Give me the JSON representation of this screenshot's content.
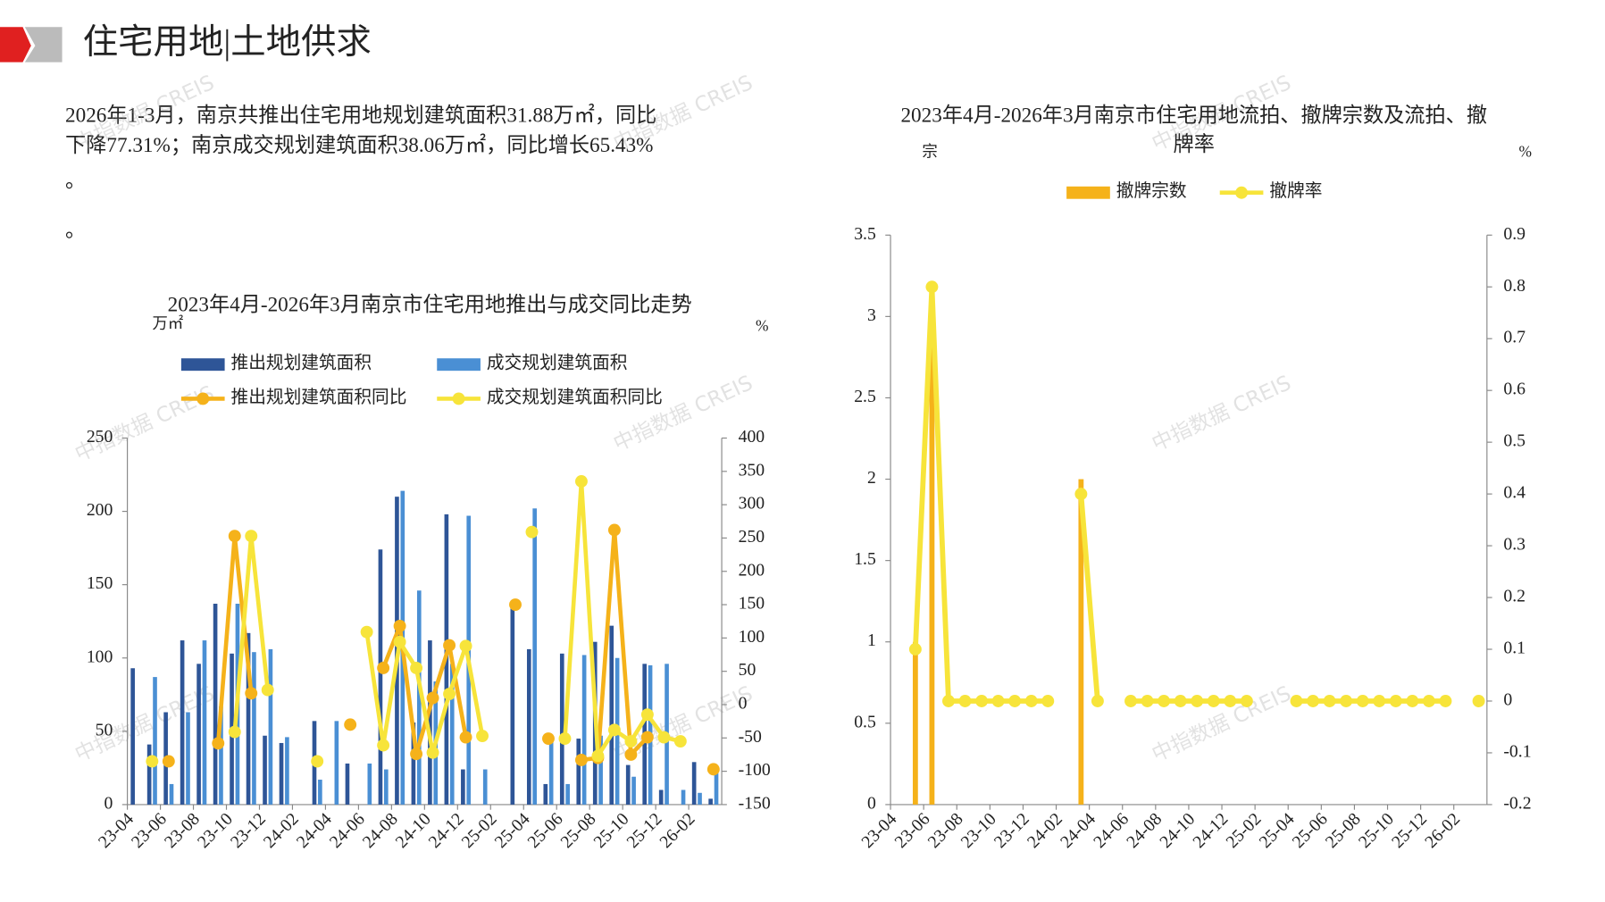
{
  "header": {
    "title": "住宅用地|土地供求"
  },
  "paragraph": [
    "2026年1-3月，南京共推出住宅用地规划建筑面积31.88万㎡，同比",
    "下降77.31%；南京成交规划建筑面积38.06万㎡，同比增长65.43%",
    "。",
    "。"
  ],
  "watermark": "中指数据 CREIS",
  "chart_data": [
    {
      "type": "combo",
      "title": "2023年4月-2026年3月南京市住宅用地推出与成交同比走势",
      "y_unit": "万㎡",
      "y2_unit": "%",
      "categories": [
        "23-04",
        null,
        "23-06",
        null,
        "23-08",
        null,
        "23-10",
        null,
        "23-12",
        null,
        "24-02",
        null,
        "24-04",
        null,
        "24-06",
        null,
        "24-08",
        null,
        "24-10",
        null,
        "24-12",
        null,
        "25-02",
        null,
        "25-04",
        null,
        "25-06",
        null,
        "25-08",
        null,
        "25-10",
        null,
        "25-12",
        null,
        "26-02",
        null
      ],
      "ylim": [
        0,
        250
      ],
      "yticks": [
        0,
        50,
        100,
        150,
        200,
        250
      ],
      "y2lim": [
        -150,
        400
      ],
      "y2ticks": [
        -150,
        -100,
        -50,
        0,
        50,
        100,
        150,
        200,
        250,
        300,
        350,
        400
      ],
      "series": [
        {
          "name": "推出规划建筑面积",
          "kind": "bar",
          "color": "#2e5597",
          "values": [
            93,
            41,
            63,
            112,
            96,
            137,
            103,
            117,
            47,
            42,
            0,
            57,
            0,
            28,
            0,
            174,
            210,
            56,
            112,
            198,
            24,
            0,
            0,
            137,
            106,
            14,
            103,
            45,
            111,
            122,
            27,
            96,
            10,
            0,
            29,
            4
          ]
        },
        {
          "name": "成交规划建筑面积",
          "kind": "bar",
          "color": "#4a8fd4",
          "values": [
            0,
            87,
            14,
            63,
            112,
            67,
            137,
            104,
            106,
            46,
            0,
            17,
            57,
            0,
            28,
            24,
            214,
            146,
            84,
            96,
            197,
            24,
            0,
            0,
            202,
            45,
            14,
            102,
            47,
            100,
            19,
            95,
            96,
            10,
            8,
            26
          ]
        },
        {
          "name": "推出规划建筑面积同比",
          "kind": "line",
          "axis": "y2",
          "color": "#f5b21a",
          "values": [
            null,
            null,
            -85,
            null,
            null,
            -58,
            253,
            17,
            null,
            null,
            null,
            null,
            null,
            -30,
            null,
            55,
            118,
            -74,
            10,
            89,
            -49,
            null,
            null,
            150,
            null,
            -51,
            null,
            -83,
            -80,
            262,
            -75,
            -49,
            null,
            null,
            null,
            -97
          ]
        },
        {
          "name": "成交规划建筑面积同比",
          "kind": "line",
          "axis": "y2",
          "color": "#f7e43a",
          "values": [
            null,
            -85,
            null,
            null,
            null,
            null,
            -41,
            253,
            22,
            null,
            null,
            -85,
            null,
            null,
            109,
            -61,
            94,
            55,
            -72,
            16,
            88,
            -47,
            null,
            null,
            259,
            null,
            -51,
            335,
            -77,
            -38,
            -55,
            -15,
            -49,
            -55,
            null,
            null
          ]
        }
      ]
    },
    {
      "type": "combo",
      "title": [
        "2023年4月-2026年3月南京市住宅用地流拍、撤牌宗数及流拍、撤",
        "牌率"
      ],
      "y_unit": "宗",
      "y2_unit": "%",
      "categories": [
        "23-04",
        null,
        "23-06",
        null,
        "23-08",
        null,
        "23-10",
        null,
        "23-12",
        null,
        "24-02",
        null,
        "24-04",
        null,
        "24-06",
        null,
        "24-08",
        null,
        "24-10",
        null,
        "24-12",
        null,
        "25-02",
        null,
        "25-04",
        null,
        "25-06",
        null,
        "25-08",
        null,
        "25-10",
        null,
        "25-12",
        null,
        "26-02",
        null
      ],
      "ylim": [
        0,
        3.5
      ],
      "yticks": [
        0,
        0.5,
        1,
        1.5,
        2,
        2.5,
        3,
        3.5
      ],
      "y2lim": [
        -0.2,
        0.9
      ],
      "y2ticks": [
        -0.2,
        -0.1,
        0,
        0.1,
        0.2,
        0.3,
        0.4,
        0.5,
        0.6,
        0.7,
        0.8,
        0.9
      ],
      "series": [
        {
          "name": "撤牌宗数",
          "kind": "bar",
          "color": "#f5b21a",
          "values": [
            null,
            1,
            3,
            0,
            0,
            0,
            0,
            0,
            0,
            0,
            null,
            2,
            0,
            null,
            0,
            0,
            0,
            0,
            0,
            0,
            0,
            0,
            null,
            null,
            0,
            0,
            0,
            0,
            0,
            0,
            0,
            0,
            0,
            0,
            null,
            0
          ]
        },
        {
          "name": "撤牌率",
          "kind": "line",
          "axis": "y2",
          "color": "#f7e43a",
          "values": [
            null,
            0.1,
            0.8,
            0,
            0,
            0,
            0,
            0,
            0,
            0,
            null,
            0.4,
            0,
            null,
            0,
            0,
            0,
            0,
            0,
            0,
            0,
            0,
            null,
            null,
            0,
            0,
            0,
            0,
            0,
            0,
            0,
            0,
            0,
            0,
            null,
            0
          ]
        }
      ]
    }
  ]
}
